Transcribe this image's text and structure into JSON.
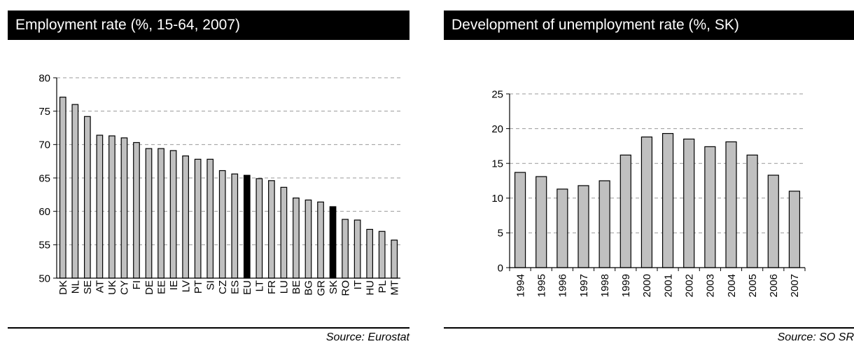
{
  "left_panel": {
    "title": "Employment rate (%, 15-64, 2007)",
    "source": "Source: Eurostat"
  },
  "right_panel": {
    "title": "Development of unemployment rate (%, SK)",
    "source": "Source: SO SR"
  },
  "colors": {
    "bar_fill": "#c0c0c0",
    "highlight_fill": "#000000",
    "title_bar": "#000000",
    "title_text": "#ffffff"
  },
  "chart_data": [
    {
      "type": "bar",
      "title": "Employment rate (%, 15-64, 2007)",
      "categories": [
        "DK",
        "NL",
        "SE",
        "AT",
        "UK",
        "CY",
        "FI",
        "DE",
        "EE",
        "IE",
        "LV",
        "PT",
        "SI",
        "CZ",
        "ES",
        "EU",
        "LT",
        "FR",
        "LU",
        "BE",
        "BG",
        "GR",
        "SK",
        "RO",
        "IT",
        "HU",
        "PL",
        "MT"
      ],
      "values": [
        77.1,
        76.0,
        74.2,
        71.4,
        71.3,
        71.0,
        70.3,
        69.4,
        69.4,
        69.1,
        68.3,
        67.8,
        67.8,
        66.1,
        65.6,
        65.4,
        64.9,
        64.6,
        63.6,
        62.0,
        61.7,
        61.4,
        60.7,
        58.8,
        58.7,
        57.3,
        57.0,
        55.7
      ],
      "highlight": [
        "EU",
        "SK"
      ],
      "ylim": [
        50,
        80
      ],
      "yticks": [
        50,
        55,
        60,
        65,
        70,
        75,
        80
      ],
      "grid": true,
      "xlabel": "",
      "ylabel": ""
    },
    {
      "type": "bar",
      "title": "Development of unemployment rate (%, SK)",
      "categories": [
        "1994",
        "1995",
        "1996",
        "1997",
        "1998",
        "1999",
        "2000",
        "2001",
        "2002",
        "2003",
        "2004",
        "2005",
        "2006",
        "2007"
      ],
      "values": [
        13.7,
        13.1,
        11.3,
        11.8,
        12.5,
        16.2,
        18.8,
        19.3,
        18.5,
        17.4,
        18.1,
        16.2,
        13.3,
        11.0
      ],
      "ylim": [
        0,
        25
      ],
      "yticks": [
        0,
        5,
        10,
        15,
        20,
        25
      ],
      "grid": true,
      "xlabel": "",
      "ylabel": ""
    }
  ]
}
